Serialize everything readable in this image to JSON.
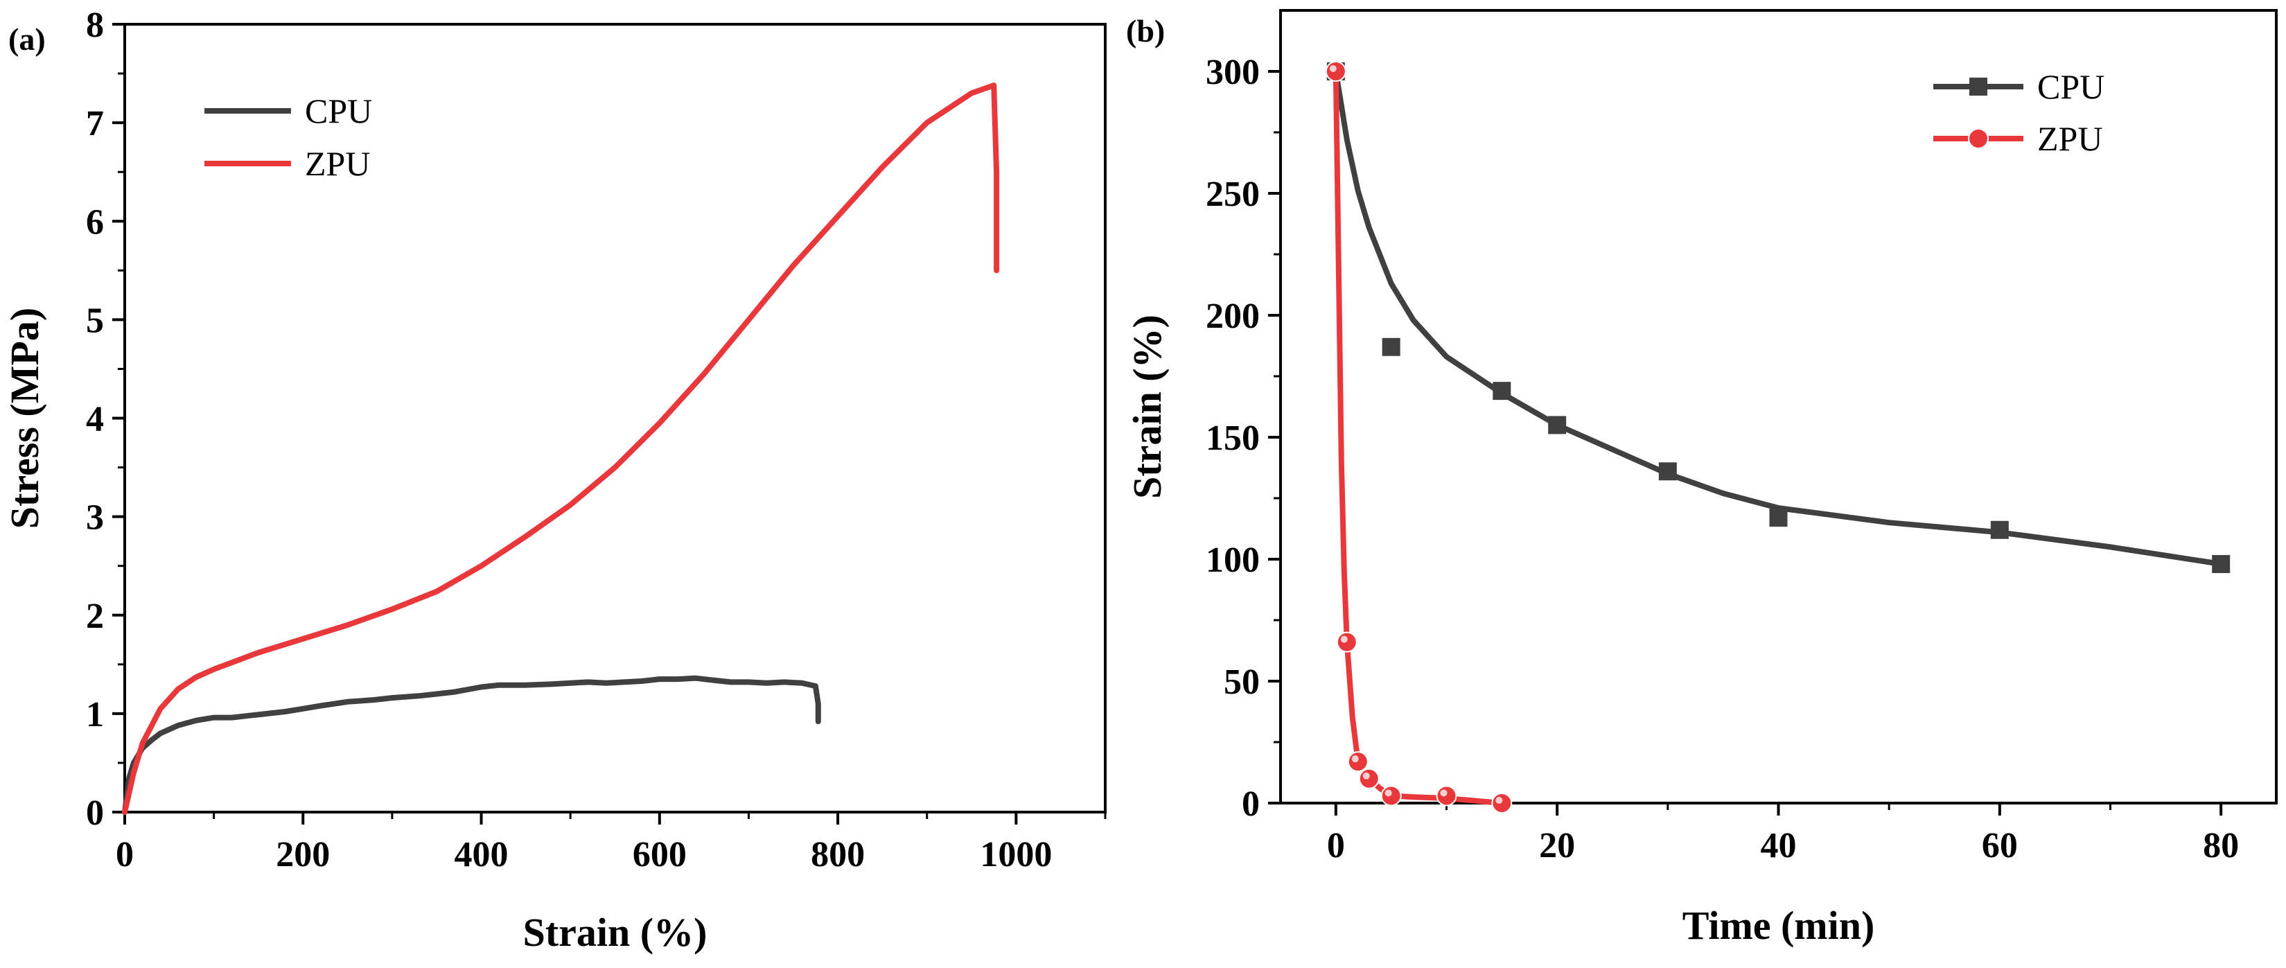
{
  "figure": {
    "colors": {
      "cpu": "#404040",
      "zpu": "#e8383b",
      "axis": "#000000"
    }
  },
  "chart_data": [
    {
      "id": "a",
      "panel_label": "(a)",
      "type": "line",
      "xlabel": "Strain (%)",
      "ylabel": "Stress (MPa)",
      "xlim": [
        0,
        1100
      ],
      "ylim": [
        0,
        8
      ],
      "xticks": [
        0,
        200,
        400,
        600,
        800,
        1000
      ],
      "yticks": [
        0,
        1,
        2,
        3,
        4,
        5,
        6,
        7,
        8
      ],
      "legend_position": "top-left",
      "series": [
        {
          "name": "CPU",
          "color": "#404040",
          "marker": "none",
          "x": [
            0,
            5,
            10,
            20,
            30,
            40,
            60,
            80,
            100,
            120,
            140,
            160,
            180,
            200,
            220,
            250,
            280,
            300,
            330,
            350,
            370,
            400,
            420,
            450,
            480,
            500,
            520,
            540,
            560,
            580,
            600,
            620,
            640,
            660,
            680,
            700,
            720,
            740,
            760,
            775,
            778,
            778
          ],
          "y": [
            0,
            0.35,
            0.5,
            0.65,
            0.73,
            0.8,
            0.88,
            0.93,
            0.96,
            0.96,
            0.98,
            1.0,
            1.02,
            1.05,
            1.08,
            1.12,
            1.14,
            1.16,
            1.18,
            1.2,
            1.22,
            1.27,
            1.29,
            1.29,
            1.3,
            1.31,
            1.32,
            1.31,
            1.32,
            1.33,
            1.35,
            1.35,
            1.36,
            1.34,
            1.32,
            1.32,
            1.31,
            1.32,
            1.31,
            1.28,
            1.1,
            0.92
          ]
        },
        {
          "name": "ZPU",
          "color": "#e8383b",
          "marker": "none",
          "x": [
            0,
            10,
            20,
            40,
            60,
            80,
            100,
            150,
            200,
            250,
            300,
            350,
            400,
            450,
            500,
            550,
            600,
            650,
            700,
            750,
            800,
            850,
            900,
            950,
            975,
            978,
            978
          ],
          "y": [
            0,
            0.4,
            0.7,
            1.05,
            1.25,
            1.37,
            1.45,
            1.62,
            1.76,
            1.9,
            2.06,
            2.24,
            2.5,
            2.8,
            3.12,
            3.5,
            3.95,
            4.45,
            5.0,
            5.55,
            6.05,
            6.55,
            7.0,
            7.3,
            7.38,
            6.5,
            5.5
          ]
        }
      ]
    },
    {
      "id": "b",
      "panel_label": "(b)",
      "type": "line",
      "xlabel": "Time (min)",
      "ylabel": "Strain (%)",
      "xlim": [
        -5,
        85
      ],
      "ylim": [
        0,
        325
      ],
      "xticks": [
        0,
        20,
        40,
        60,
        80
      ],
      "yticks": [
        0,
        50,
        100,
        150,
        200,
        250,
        300
      ],
      "legend_position": "top-right",
      "series": [
        {
          "name": "CPU",
          "color": "#404040",
          "marker": "square",
          "points_x": [
            0,
            5,
            15,
            20,
            30,
            40,
            60,
            80
          ],
          "points_y": [
            300,
            187,
            169,
            155,
            136,
            117,
            112,
            98
          ],
          "curve_x": [
            0,
            1,
            2,
            3,
            5,
            7,
            10,
            15,
            20,
            25,
            30,
            35,
            40,
            50,
            60,
            70,
            80
          ],
          "curve_y": [
            300,
            272,
            251,
            236,
            213,
            198,
            183,
            168,
            155,
            145,
            135,
            127,
            121,
            115,
            111,
            105,
            98
          ]
        },
        {
          "name": "ZPU",
          "color": "#e8383b",
          "marker": "circle",
          "points_x": [
            0,
            1,
            2,
            3,
            5,
            10,
            15
          ],
          "points_y": [
            300,
            66,
            17,
            10,
            3,
            3,
            0
          ],
          "curve_x": [
            0,
            0.25,
            0.5,
            0.75,
            1,
            1.5,
            2,
            3,
            4,
            5,
            7,
            10,
            15
          ],
          "curve_y": [
            300,
            220,
            140,
            95,
            66,
            35,
            17,
            10,
            6,
            3,
            2.5,
            2,
            0
          ]
        }
      ]
    }
  ]
}
